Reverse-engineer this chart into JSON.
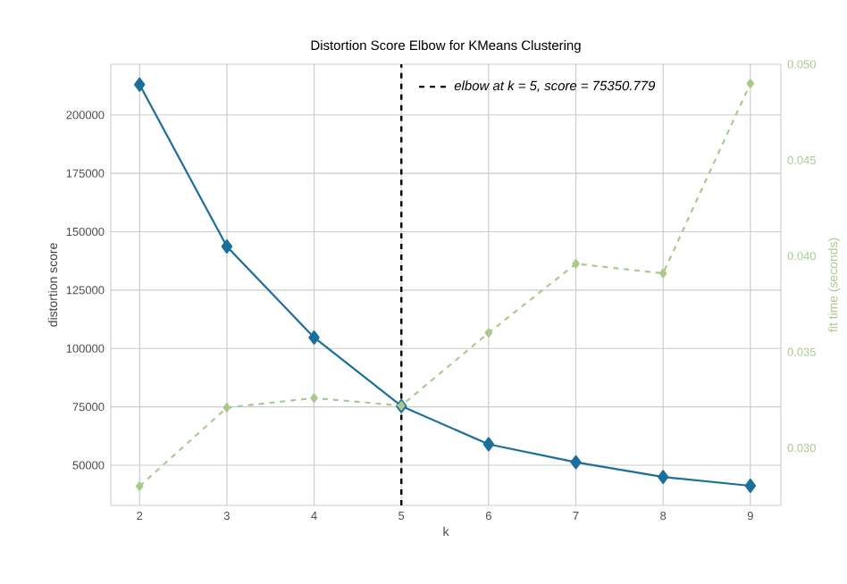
{
  "chart_data": {
    "type": "line",
    "title": "Distortion Score Elbow for KMeans Clustering",
    "xlabel": "k",
    "ylabel": "distortion score",
    "y2label": "fit time (seconds)",
    "x": [
      2,
      3,
      4,
      5,
      6,
      7,
      8,
      9
    ],
    "series": [
      {
        "color": "#1a6f9c",
        "values": [
          213000,
          143700,
          104700,
          75350,
          59000,
          51300,
          45000,
          41200
        ]
      },
      {
        "color": "#a9c98e",
        "axis": "y2",
        "line_style": "dashed",
        "values": [
          0.028,
          0.0321,
          0.0326,
          0.0322,
          0.036,
          0.0396,
          0.0391,
          0.049
        ]
      }
    ],
    "xlim": [
      1.67,
      9.35
    ],
    "xticks": [
      2,
      3,
      4,
      5,
      6,
      7,
      8,
      9
    ],
    "ylim": [
      32800,
      221700
    ],
    "yticks": [
      50000,
      75000,
      100000,
      125000,
      150000,
      175000,
      200000
    ],
    "y2lim": [
      0.027,
      0.05
    ],
    "y2ticks": [
      {
        "value": 0.03,
        "label": "0.030"
      },
      {
        "value": 0.035,
        "label": "0.035"
      },
      {
        "value": 0.04,
        "label": "0.040"
      },
      {
        "value": 0.045,
        "label": "0.045"
      },
      {
        "value": 0.05,
        "label": "0.050"
      }
    ],
    "ref_lines": [
      {
        "axis": "x",
        "value": 5,
        "label": "elbow at k = 5, score = 75350.779",
        "color": "#000000",
        "line_style": "dashed"
      }
    ],
    "grid": true,
    "legend": "top right",
    "marker": "diamond",
    "line_style": "solid"
  }
}
